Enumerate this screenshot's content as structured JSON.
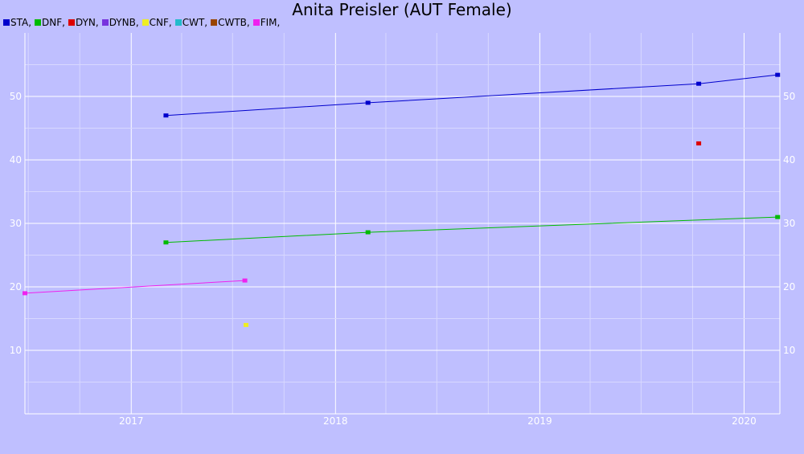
{
  "chart_data": {
    "type": "line",
    "title": "Anita Preisler (AUT Female)",
    "xlabel": "",
    "ylabel": "",
    "x_axis": {
      "type": "date",
      "range": [
        "2016-06-25",
        "2020-03-05"
      ],
      "ticks": [
        "2017",
        "2018",
        "2019",
        "2020"
      ]
    },
    "y_axis": {
      "range": [
        0,
        60
      ],
      "ticks": [
        "10",
        "20",
        "30",
        "40",
        "50"
      ],
      "right_side_labels": true
    },
    "grid": true,
    "legend": "top-left",
    "series": [
      {
        "name": "STA",
        "color": "#0000cc",
        "points": [
          [
            "2017-03-04",
            47.0
          ],
          [
            "2018-02-28",
            49.0
          ],
          [
            "2019-10-12",
            52.0
          ],
          [
            "2020-03-01",
            53.4
          ]
        ]
      },
      {
        "name": "DNF",
        "color": "#00bb00",
        "points": [
          [
            "2017-03-04",
            27.0
          ],
          [
            "2018-02-28",
            28.6
          ],
          [
            "2020-03-01",
            31.0
          ]
        ]
      },
      {
        "name": "DYN",
        "color": "#dd0000",
        "points": [
          [
            "2019-10-12",
            42.6
          ]
        ]
      },
      {
        "name": "DYNB",
        "color": "#7733dd",
        "points": []
      },
      {
        "name": "CNF",
        "color": "#eeee22",
        "points": [
          [
            "2017-07-25",
            14.0
          ]
        ]
      },
      {
        "name": "CWT",
        "color": "#22bbcc",
        "points": []
      },
      {
        "name": "CWTB",
        "color": "#994400",
        "points": []
      },
      {
        "name": "FIM",
        "color": "#ee22ee",
        "points": [
          [
            "2016-06-25",
            19.0
          ],
          [
            "2017-07-23",
            21.0
          ]
        ]
      }
    ]
  }
}
